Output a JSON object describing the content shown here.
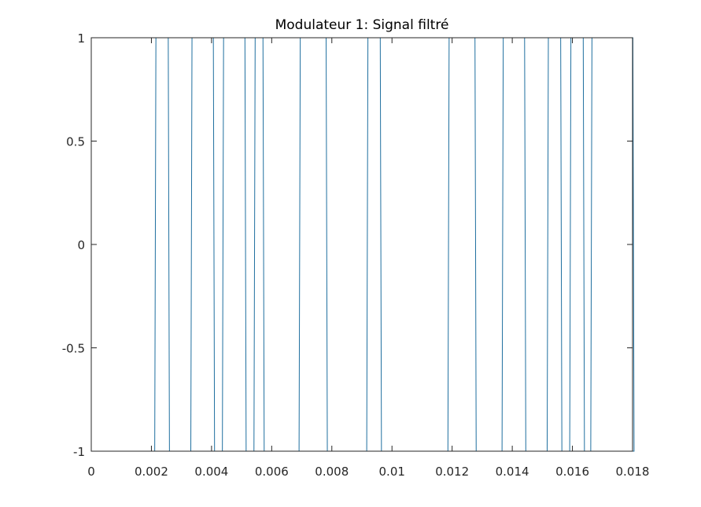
{
  "chart_data": {
    "type": "line",
    "title": "Modulateur 1: Signal filtré",
    "xlabel": "",
    "ylabel": "",
    "xlim": [
      0,
      0.018
    ],
    "ylim": [
      -1,
      1
    ],
    "grid": false,
    "box": true,
    "line_color": "#1f6f9f",
    "xticks": [
      0,
      0.002,
      0.004,
      0.006,
      0.008,
      0.01,
      0.012,
      0.014,
      0.016,
      0.018
    ],
    "xtick_labels": [
      "0",
      "0.002",
      "0.004",
      "0.006",
      "0.008",
      "0.01",
      "0.012",
      "0.014",
      "0.016",
      "0.018"
    ],
    "yticks": [
      -1,
      -0.5,
      0,
      0.5,
      1
    ],
    "ytick_labels": [
      "-1",
      "-0.5",
      "0",
      "0.5",
      "1"
    ],
    "series": [
      {
        "x_end": 0.01667,
        "edge_width": 4e-05,
        "initial_level": -1,
        "transitions": [
          0.00211,
          0.00256,
          0.00331,
          0.00406,
          0.00436,
          0.00511,
          0.00541,
          0.00571,
          0.00691,
          0.00781,
          0.00916,
          0.00961,
          0.01186,
          0.01276,
          0.01366,
          0.01441,
          0.01516,
          0.01561,
          0.01591,
          0.01636,
          0.01661,
          0.01801
        ]
      }
    ]
  }
}
